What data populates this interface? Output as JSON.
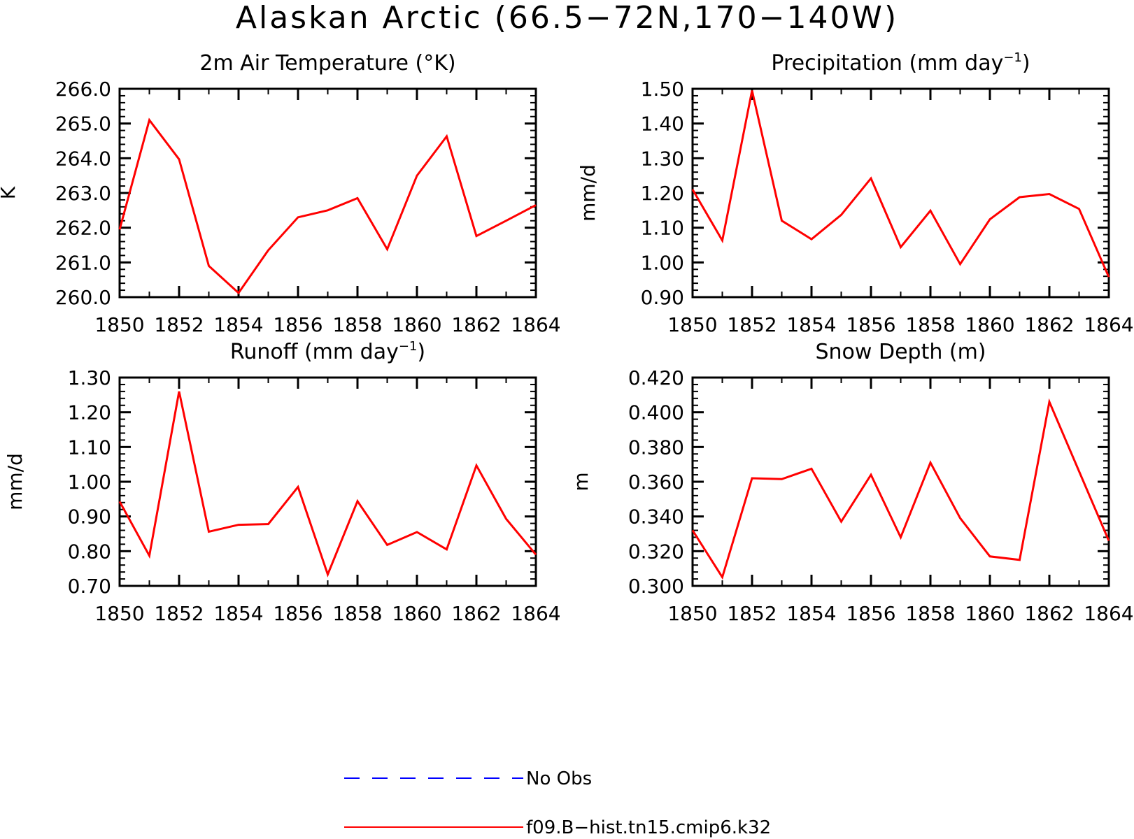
{
  "figure": {
    "title": "Alaskan Arctic (66.5−72N,170−140W)"
  },
  "chart_data": [
    {
      "type": "line",
      "title": "2m Air Temperature (°K)",
      "title_parts": [
        "2m Air Temperature (°K)",
        "",
        ""
      ],
      "xlabel": "",
      "ylabel": "K",
      "x": [
        1850,
        1851,
        1852,
        1853,
        1854,
        1855,
        1856,
        1857,
        1858,
        1859,
        1860,
        1861,
        1862,
        1863,
        1864
      ],
      "xlim": [
        1850,
        1864
      ],
      "x_ticks": [
        "1850",
        "1852",
        "1854",
        "1856",
        "1858",
        "1860",
        "1862",
        "1864"
      ],
      "ylim": [
        260.0,
        266.0
      ],
      "y_ticks": [
        "260.0",
        "261.0",
        "262.0",
        "263.0",
        "264.0",
        "265.0",
        "266.0"
      ],
      "series": [
        {
          "name": "f09.B−hist.tn15.cmip6.k32",
          "color": "#ff0000",
          "values": [
            261.95,
            265.1,
            263.97,
            260.9,
            260.12,
            261.35,
            262.3,
            262.5,
            262.85,
            261.38,
            263.5,
            264.63,
            261.76,
            262.2,
            262.65
          ]
        }
      ],
      "grid": false
    },
    {
      "type": "line",
      "title": "Precipitation (mm day⁻¹)",
      "title_parts": [
        "Precipitation (mm day",
        "−1",
        ")"
      ],
      "xlabel": "",
      "ylabel": "mm/d",
      "x": [
        1850,
        1851,
        1852,
        1853,
        1854,
        1855,
        1856,
        1857,
        1858,
        1859,
        1860,
        1861,
        1862,
        1863,
        1864
      ],
      "xlim": [
        1850,
        1864
      ],
      "x_ticks": [
        "1850",
        "1852",
        "1854",
        "1856",
        "1858",
        "1860",
        "1862",
        "1864"
      ],
      "ylim": [
        0.9,
        1.5
      ],
      "y_ticks": [
        "0.90",
        "1.00",
        "1.10",
        "1.20",
        "1.30",
        "1.40",
        "1.50"
      ],
      "series": [
        {
          "name": "f09.B−hist.tn15.cmip6.k32",
          "color": "#ff0000",
          "values": [
            1.21,
            1.063,
            1.495,
            1.12,
            1.067,
            1.137,
            1.242,
            1.044,
            1.149,
            0.995,
            1.124,
            1.188,
            1.197,
            1.154,
            0.958
          ]
        }
      ],
      "grid": false
    },
    {
      "type": "line",
      "title": "Runoff (mm day⁻¹)",
      "title_parts": [
        "Runoff (mm day",
        "−1",
        ")"
      ],
      "xlabel": "",
      "ylabel": "mm/d",
      "x": [
        1850,
        1851,
        1852,
        1853,
        1854,
        1855,
        1856,
        1857,
        1858,
        1859,
        1860,
        1861,
        1862,
        1863,
        1864
      ],
      "xlim": [
        1850,
        1864
      ],
      "x_ticks": [
        "1850",
        "1852",
        "1854",
        "1856",
        "1858",
        "1860",
        "1862",
        "1864"
      ],
      "ylim": [
        0.7,
        1.3
      ],
      "y_ticks": [
        "0.70",
        "0.80",
        "0.90",
        "1.00",
        "1.10",
        "1.20",
        "1.30"
      ],
      "series": [
        {
          "name": "f09.B−hist.tn15.cmip6.k32",
          "color": "#ff0000",
          "values": [
            0.943,
            0.787,
            1.26,
            0.856,
            0.876,
            0.878,
            0.985,
            0.733,
            0.944,
            0.818,
            0.855,
            0.805,
            1.047,
            0.893,
            0.79
          ]
        }
      ],
      "grid": false
    },
    {
      "type": "line",
      "title": "Snow Depth (m)",
      "title_parts": [
        "Snow Depth (m)",
        "",
        ""
      ],
      "xlabel": "",
      "ylabel": "m",
      "x": [
        1850,
        1851,
        1852,
        1853,
        1854,
        1855,
        1856,
        1857,
        1858,
        1859,
        1860,
        1861,
        1862,
        1863,
        1864
      ],
      "xlim": [
        1850,
        1864
      ],
      "x_ticks": [
        "1850",
        "1852",
        "1854",
        "1856",
        "1858",
        "1860",
        "1862",
        "1864"
      ],
      "ylim": [
        0.3,
        0.42
      ],
      "y_ticks": [
        "0.300",
        "0.320",
        "0.340",
        "0.360",
        "0.380",
        "0.400",
        "0.420"
      ],
      "series": [
        {
          "name": "f09.B−hist.tn15.cmip6.k32",
          "color": "#ff0000",
          "values": [
            0.332,
            0.305,
            0.362,
            0.3615,
            0.3675,
            0.337,
            0.364,
            0.328,
            0.371,
            0.339,
            0.317,
            0.315,
            0.406,
            0.366,
            0.326
          ]
        }
      ],
      "grid": false
    }
  ],
  "legend": {
    "entries": [
      {
        "label": "No Obs",
        "color": "#0000ff",
        "style": "dashed"
      },
      {
        "label": "f09.B−hist.tn15.cmip6.k32",
        "color": "#ff0000",
        "style": "solid"
      }
    ]
  }
}
